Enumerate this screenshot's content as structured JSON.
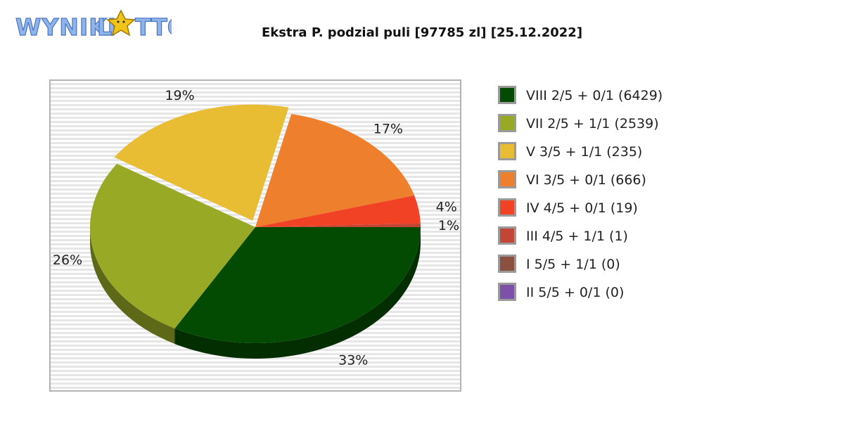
{
  "logo": {
    "text_left": "WYNIKI",
    "text_right": "LOTTO",
    "letter_o": "O"
  },
  "chart_data": {
    "type": "pie",
    "title": "Ekstra P. podzial puli [97785 zl] [25.12.2022]",
    "slices": [
      {
        "label": "VIII 2/5 + 0/1 (6429)",
        "percent_label": "33%",
        "value": 6429,
        "color": "#034A02"
      },
      {
        "label": "VII 2/5 + 1/1 (2539)",
        "percent_label": "26%",
        "value": 2539,
        "color": "#97A925"
      },
      {
        "label": "V 3/5 + 1/1 (235)",
        "percent_label": "19%",
        "value": 235,
        "color": "#E8BC33"
      },
      {
        "label": "VI 3/5 + 0/1 (666)",
        "percent_label": "17%",
        "value": 666,
        "color": "#EE7F2C"
      },
      {
        "label": "IV 4/5 + 0/1 (19)",
        "percent_label": "4%",
        "value": 19,
        "color": "#F24226"
      },
      {
        "label": "III 4/5 + 1/1 (1)",
        "percent_label": "1%",
        "value": 1,
        "color": "#C24535"
      },
      {
        "label": "I 5/5 + 1/1 (0)",
        "percent_label": "",
        "value": 0,
        "color": "#8B5040"
      },
      {
        "label": "II 5/5 + 0/1 (0)",
        "percent_label": "",
        "value": 0,
        "color": "#7E51A8"
      }
    ],
    "share_percent": [
      33.1,
      26.1,
      19.3,
      17.1,
      3.9,
      0.5,
      0,
      0
    ],
    "legend_position": "right"
  }
}
